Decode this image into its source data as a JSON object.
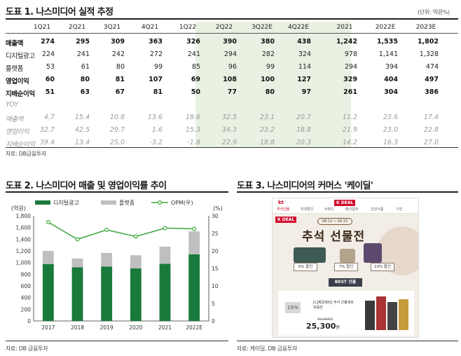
{
  "section1": {
    "title": "도표 1. 나스미디어 실적 추정",
    "unit": "(단위: 억원%)",
    "source": "자료: DB금융투자",
    "columns": [
      "1Q21",
      "2Q21",
      "3Q21",
      "4Q21",
      "1Q22",
      "2Q22",
      "3Q22E",
      "4Q22E",
      "2021",
      "2022E",
      "2023E"
    ],
    "rows": [
      {
        "label": "매출액",
        "bold": true,
        "values": [
          "274",
          "295",
          "309",
          "363",
          "326",
          "390",
          "380",
          "438",
          "1,242",
          "1,535",
          "1,802"
        ]
      },
      {
        "label": "디지털광고",
        "bold": false,
        "values": [
          "224",
          "241",
          "242",
          "272",
          "241",
          "294",
          "282",
          "324",
          "978",
          "1,141",
          "1,328"
        ]
      },
      {
        "label": "플랫폼",
        "bold": false,
        "values": [
          "53",
          "61",
          "80",
          "99",
          "85",
          "96",
          "99",
          "114",
          "294",
          "394",
          "474"
        ]
      },
      {
        "label": "영업이익",
        "bold": true,
        "values": [
          "60",
          "80",
          "81",
          "107",
          "69",
          "108",
          "100",
          "127",
          "329",
          "404",
          "497"
        ]
      },
      {
        "label": "지배순이익",
        "bold": true,
        "values": [
          "51",
          "63",
          "67",
          "81",
          "50",
          "77",
          "80",
          "97",
          "261",
          "304",
          "386"
        ]
      },
      {
        "label": "YOY",
        "yoy": true,
        "values": [
          "",
          "",
          "",
          "",
          "",
          "",
          "",
          "",
          "",
          "",
          ""
        ]
      },
      {
        "label": "매출액",
        "yoy": true,
        "values": [
          "4.7",
          "15.4",
          "10.8",
          "13.6",
          "18.6",
          "32.5",
          "23.1",
          "20.7",
          "11.2",
          "23.6",
          "17.4"
        ]
      },
      {
        "label": "영업이익",
        "yoy": true,
        "values": [
          "32.7",
          "42.5",
          "29.7",
          "1.6",
          "15.3",
          "34.3",
          "23.2",
          "18.8",
          "21.9",
          "23.0",
          "22.8"
        ]
      },
      {
        "label": "지배순이익",
        "yoy": true,
        "values": [
          "39.4",
          "13.4",
          "25.0",
          "-3.2",
          "-1.8",
          "22.9",
          "18.8",
          "20.3",
          "14.2",
          "16.3",
          "27.0"
        ]
      }
    ]
  },
  "section2": {
    "title": "도표 2. 나스미디어 매출 및 영업이익률 추이",
    "source": "자료: DB 금융투자",
    "legend": {
      "digital": "디지털광고",
      "platform": "플랫폼",
      "opm": "OPM(우)"
    }
  },
  "chart_data": {
    "type": "bar",
    "stacked": true,
    "categories": [
      "2017",
      "2018",
      "2019",
      "2020",
      "2021",
      "2022E"
    ],
    "series": [
      {
        "name": "디지털광고",
        "values": [
          975,
          920,
          930,
          900,
          978,
          1141
        ],
        "color": "#1a7a3c"
      },
      {
        "name": "플랫폼",
        "values": [
          225,
          150,
          235,
          225,
          294,
          394
        ],
        "color": "#bfbfbf"
      }
    ],
    "line_series": {
      "name": "OPM(우)",
      "values": [
        28.2,
        23.3,
        26.0,
        24.1,
        26.5,
        26.3
      ],
      "color": "#3aa63a"
    },
    "ylabel_left": "(억원)",
    "ylabel_right": "(%)",
    "ylim_left": [
      0,
      1800
    ],
    "ylim_right": [
      0,
      30
    ],
    "yticks_left": [
      "0",
      "200",
      "400",
      "600",
      "800",
      "1,000",
      "1,200",
      "1,400",
      "1,600",
      "1,800"
    ],
    "yticks_right": [
      "0",
      "5",
      "10",
      "15",
      "20",
      "25",
      "30"
    ],
    "grid": false,
    "legend_position": "top"
  },
  "section3": {
    "title": "도표 3. 나스미디어의 커머스 '케이딜'",
    "source": "자료: 케이딜, DB 금융투자",
    "app": {
      "brand": "kt",
      "deal_label": "K DEAL",
      "tabs": [
        "추석선물",
        "최대할인",
        "브랜드",
        "패션잡화",
        "건강식품",
        "가전"
      ],
      "banner_date": "08.12 ~ 09.13",
      "banner_title": "추석 선물전",
      "discounts": [
        "5% 할인",
        "7% 할인",
        "10% 할인"
      ],
      "best_button": "BEST 선물",
      "product_discount": "19%",
      "product_name": "[CJ제일제당] 추석 선물세트 모음전",
      "old_price": "31,160원",
      "price": "25,300",
      "price_unit": "원"
    }
  }
}
